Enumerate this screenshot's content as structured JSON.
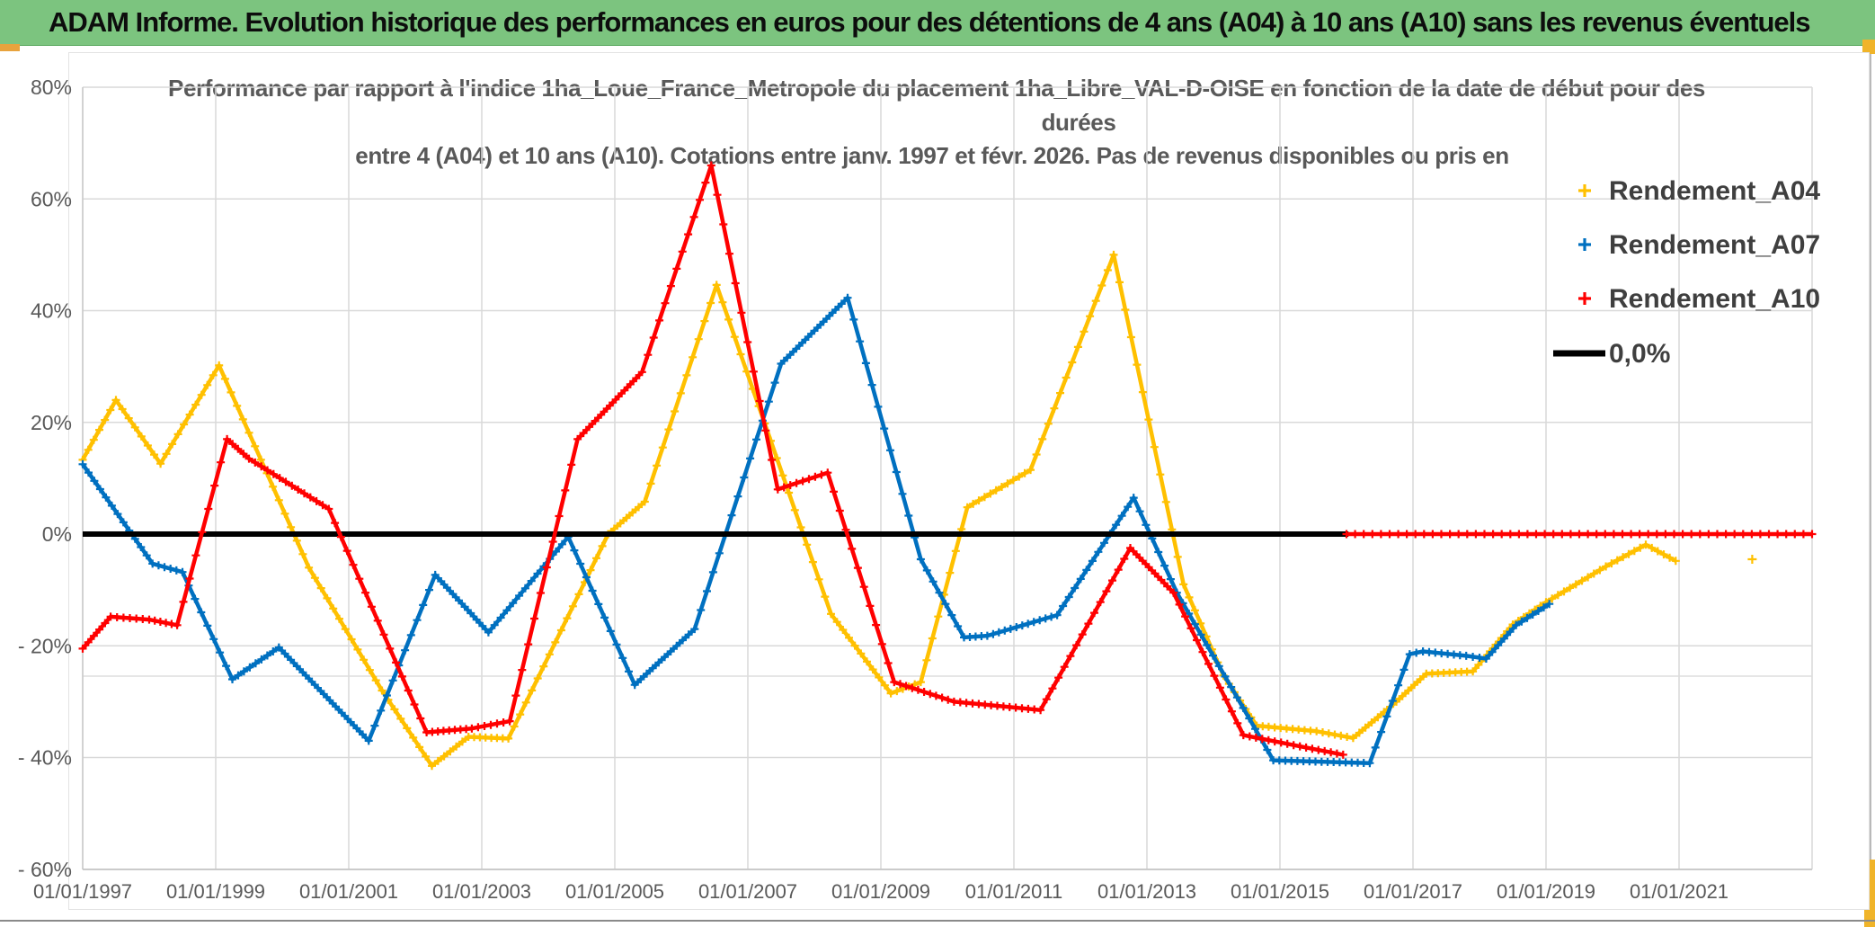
{
  "window": {
    "header_title": "ADAM Informe. Evolution historique des performances en euros pour des détentions de 4 ans (A04) à 10 ans (A10) sans les revenus éventuels"
  },
  "chart_data": {
    "type": "line",
    "title_lines": {
      "l1": "Performance par rapport à l'indice 1ha_Loue_France_Metropole  du placement 1ha_Libre_VAL-D-OISE en fonction de la date de début pour des",
      "l2": "durées",
      "l3": "entre 4 (A04) et 10 ans (A10). Cotations entre janv. 1997 et févr. 2026. Pas de revenus disponibles ou pris en"
    },
    "x_axis": {
      "ticks": [
        {
          "year": 1997,
          "label": "01/01/1997"
        },
        {
          "year": 1999,
          "label": "01/01/1999"
        },
        {
          "year": 2001,
          "label": "01/01/2001"
        },
        {
          "year": 2003,
          "label": "01/01/2003"
        },
        {
          "year": 2005,
          "label": "01/01/2005"
        },
        {
          "year": 2007,
          "label": "01/01/2007"
        },
        {
          "year": 2009,
          "label": "01/01/2009"
        },
        {
          "year": 2011,
          "label": "01/01/2011"
        },
        {
          "year": 2013,
          "label": "01/01/2013"
        },
        {
          "year": 2015,
          "label": "01/01/2015"
        },
        {
          "year": 2017,
          "label": "01/01/2017"
        },
        {
          "year": 2019,
          "label": "01/01/2019"
        },
        {
          "year": 2021,
          "label": "01/01/2021"
        }
      ],
      "range_years": [
        1997,
        2023
      ]
    },
    "y_axis": {
      "ticks": [
        {
          "value": 80,
          "label": "80%"
        },
        {
          "value": 60,
          "label": "60%"
        },
        {
          "value": 40,
          "label": "40%"
        },
        {
          "value": 20,
          "label": "20%"
        },
        {
          "value": 0,
          "label": "0%"
        },
        {
          "value": -20,
          "label": "- 20%"
        },
        {
          "value": -40,
          "label": "- 40%"
        },
        {
          "value": -60,
          "label": "- 60%"
        }
      ],
      "range_pct": [
        -60,
        80
      ]
    },
    "grid": {
      "x_years": [
        1997,
        1999,
        2001,
        2003,
        2005,
        2007,
        2009,
        2011,
        2013,
        2015,
        2017,
        2019,
        2021,
        2023
      ],
      "extra_h_line_pct": -25.5,
      "grid_color": "#d9d9d9"
    },
    "legend": {
      "position": "top-right",
      "entries": [
        {
          "name": "Rendement_A04",
          "color": "#FFC000",
          "marker": "plus"
        },
        {
          "name": "Rendement_A07",
          "color": "#0070C0",
          "marker": "plus"
        },
        {
          "name": "Rendement_A10",
          "color": "#FF0000",
          "marker": "plus"
        },
        {
          "name": "0,0%",
          "color": "#000000",
          "marker": "line"
        }
      ]
    },
    "series": [
      {
        "name": "Rendement_A04",
        "color": "#FFC000",
        "markers": true,
        "width": 4.5,
        "segments": [
          [
            [
              1997.0,
              13.3
            ],
            [
              1997.5,
              24.0
            ],
            [
              1998.17,
              12.6
            ],
            [
              1999.05,
              30.2
            ],
            [
              2000.4,
              -6.0
            ],
            [
              2001.5,
              -28.0
            ],
            [
              2002.25,
              -41.5
            ],
            [
              2002.8,
              -36.3
            ],
            [
              2003.4,
              -36.6
            ],
            [
              2004.9,
              0.0
            ],
            [
              2005.45,
              5.8
            ],
            [
              2006.53,
              44.6
            ],
            [
              2008.25,
              -14.3
            ],
            [
              2009.15,
              -28.5
            ],
            [
              2009.6,
              -26.5
            ],
            [
              2010.3,
              4.8
            ],
            [
              2011.25,
              11.5
            ],
            [
              2012.5,
              50.0
            ],
            [
              2013.55,
              -9.0
            ],
            [
              2014.15,
              -25.3
            ],
            [
              2014.65,
              -34.3
            ],
            [
              2015.55,
              -35.3
            ],
            [
              2016.1,
              -36.5
            ],
            [
              2016.75,
              -30.0
            ],
            [
              2017.2,
              -25.0
            ],
            [
              2017.9,
              -24.6
            ],
            [
              2018.5,
              -16.2
            ],
            [
              2019.0,
              -12.2
            ],
            [
              2019.9,
              -5.8
            ],
            [
              2020.5,
              -1.9
            ],
            [
              2020.95,
              -4.8
            ]
          ],
          [
            [
              2022.1,
              -4.5
            ]
          ]
        ]
      },
      {
        "name": "Rendement_A07",
        "color": "#0070C0",
        "markers": true,
        "width": 4.5,
        "segments": [
          [
            [
              1997.0,
              12.5
            ],
            [
              1998.05,
              -5.3
            ],
            [
              1998.5,
              -6.8
            ],
            [
              1999.25,
              -26.0
            ],
            [
              1999.95,
              -20.3
            ],
            [
              2001.3,
              -37.0
            ],
            [
              2002.3,
              -7.3
            ],
            [
              2003.1,
              -17.6
            ],
            [
              2004.3,
              -0.5
            ],
            [
              2005.3,
              -27.0
            ],
            [
              2006.2,
              -17.0
            ],
            [
              2007.5,
              30.5
            ],
            [
              2008.5,
              42.3
            ],
            [
              2009.6,
              -4.5
            ],
            [
              2010.25,
              -18.5
            ],
            [
              2010.6,
              -18.2
            ],
            [
              2011.65,
              -14.5
            ],
            [
              2012.8,
              6.5
            ],
            [
              2013.45,
              -10.5
            ],
            [
              2014.9,
              -40.5
            ],
            [
              2016.35,
              -41.0
            ],
            [
              2016.95,
              -21.5
            ],
            [
              2017.15,
              -21.0
            ],
            [
              2017.8,
              -21.8
            ],
            [
              2018.1,
              -22.3
            ],
            [
              2018.55,
              -16.3
            ],
            [
              2019.05,
              -12.5
            ]
          ]
        ]
      },
      {
        "name": "0,0%",
        "color": "#000000",
        "markers": false,
        "width": 6,
        "segments": [
          [
            [
              1997.0,
              0.0
            ],
            [
              2016.03,
              0.0
            ]
          ]
        ]
      },
      {
        "name": "Rendement_A10",
        "color": "#FF0000",
        "markers": true,
        "width": 4.5,
        "segments": [
          [
            [
              1997.0,
              -20.5
            ],
            [
              1997.42,
              -14.8
            ],
            [
              1998.0,
              -15.3
            ],
            [
              1998.42,
              -16.3
            ],
            [
              1999.17,
              17.0
            ],
            [
              1999.5,
              13.5
            ],
            [
              2000.7,
              4.5
            ],
            [
              2002.17,
              -35.5
            ],
            [
              2002.85,
              -34.8
            ],
            [
              2003.42,
              -33.5
            ],
            [
              2004.44,
              17.0
            ],
            [
              2005.41,
              29.0
            ],
            [
              2006.45,
              66.0
            ],
            [
              2007.45,
              8.0
            ],
            [
              2008.2,
              11.0
            ],
            [
              2009.2,
              -26.5
            ],
            [
              2010.1,
              -30.0
            ],
            [
              2011.4,
              -31.5
            ],
            [
              2012.75,
              -2.5
            ],
            [
              2013.4,
              -10.5
            ],
            [
              2014.45,
              -36.0
            ],
            [
              2015.3,
              -38.0
            ],
            [
              2015.95,
              -39.5
            ]
          ],
          [
            [
              2016.0,
              0.0
            ],
            [
              2023.0,
              0.0
            ]
          ]
        ]
      }
    ]
  }
}
